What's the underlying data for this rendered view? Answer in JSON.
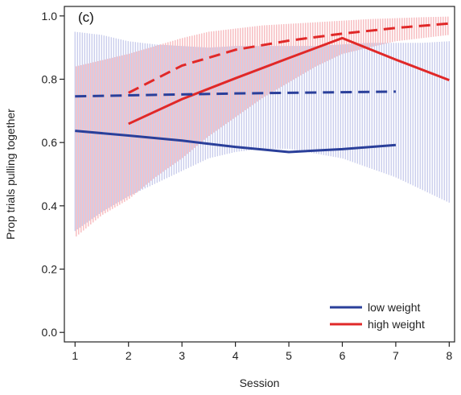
{
  "chart_data": {
    "type": "line",
    "panel_label": "(c)",
    "xlabel": "Session",
    "ylabel": "Prop trials pulling together",
    "xlim": [
      0.8,
      8.1
    ],
    "ylim": [
      -0.03,
      1.03
    ],
    "x_ticks": [
      1,
      2,
      3,
      4,
      5,
      6,
      7,
      8
    ],
    "y_ticks": [
      0.0,
      0.2,
      0.4,
      0.6,
      0.8,
      1.0
    ],
    "y_tick_labels": [
      "0.0",
      "0.2",
      "0.4",
      "0.6",
      "0.8",
      "1.0"
    ],
    "grid": false,
    "legend_position": "bottom-right",
    "colors": {
      "low": "#2a3f9a",
      "high": "#e02828",
      "low_band": "#b8bde6",
      "high_band": "#f4a2a8"
    },
    "series": [
      {
        "name": "low weight",
        "color": "#2a3f9a",
        "style": "solid",
        "x": [
          1,
          2,
          3,
          4,
          5,
          6,
          7
        ],
        "y": [
          0.637,
          0.622,
          0.606,
          0.586,
          0.57,
          0.579,
          0.592
        ]
      },
      {
        "name": "high weight",
        "color": "#e02828",
        "style": "solid",
        "x": [
          2,
          3,
          4,
          5,
          6,
          7,
          8
        ],
        "y": [
          0.659,
          0.737,
          0.803,
          0.867,
          0.93,
          0.862,
          0.797
        ]
      },
      {
        "name": "",
        "color": "#2a3f9a",
        "style": "dashed",
        "x": [
          1,
          2,
          3,
          4,
          5,
          6,
          7
        ],
        "y": [
          0.746,
          0.749,
          0.752,
          0.755,
          0.757,
          0.759,
          0.761
        ]
      },
      {
        "name": "",
        "color": "#e02828",
        "style": "dashed",
        "x": [
          2,
          3,
          4,
          5,
          6,
          7,
          8
        ],
        "y": [
          0.757,
          0.843,
          0.893,
          0.922,
          0.944,
          0.962,
          0.976
        ]
      }
    ],
    "bands": [
      {
        "series": "low weight",
        "color": "#b8bde6",
        "x": [
          1,
          1.5,
          2,
          2.5,
          3,
          3.5,
          4,
          4.5,
          5,
          5.5,
          6,
          6.5,
          7,
          7.5,
          8
        ],
        "lower": [
          0.32,
          0.38,
          0.43,
          0.47,
          0.51,
          0.55,
          0.57,
          0.58,
          0.58,
          0.565,
          0.55,
          0.52,
          0.49,
          0.45,
          0.41
        ],
        "upper": [
          0.95,
          0.94,
          0.92,
          0.91,
          0.905,
          0.9,
          0.905,
          0.905,
          0.905,
          0.905,
          0.91,
          0.915,
          0.915,
          0.915,
          0.92
        ]
      },
      {
        "series": "high weight",
        "color": "#f4a2a8",
        "x": [
          1,
          1.5,
          2,
          2.5,
          3,
          3.5,
          4,
          4.5,
          5,
          5.5,
          6,
          6.5,
          7,
          7.5,
          8
        ],
        "lower": [
          0.3,
          0.37,
          0.42,
          0.49,
          0.55,
          0.62,
          0.68,
          0.74,
          0.79,
          0.84,
          0.88,
          0.9,
          0.92,
          0.93,
          0.94
        ],
        "upper": [
          0.84,
          0.86,
          0.88,
          0.905,
          0.93,
          0.95,
          0.96,
          0.97,
          0.975,
          0.98,
          0.985,
          0.99,
          0.993,
          0.996,
          0.998
        ]
      }
    ],
    "legend": [
      {
        "label": "low weight",
        "color": "#2a3f9a"
      },
      {
        "label": "high weight",
        "color": "#e02828"
      }
    ]
  }
}
